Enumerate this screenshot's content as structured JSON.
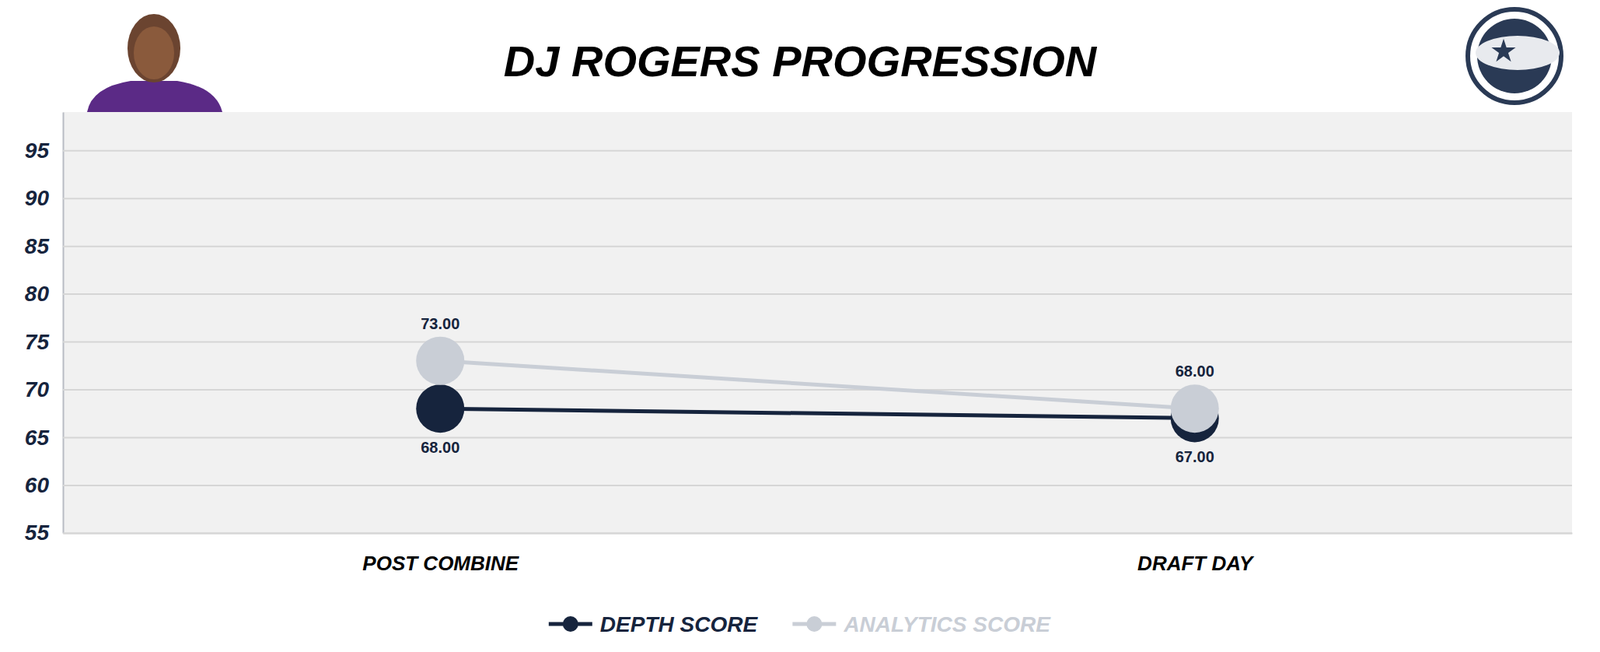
{
  "chart_data": {
    "type": "line",
    "title": "DJ ROGERS PROGRESSION",
    "categories": [
      "POST COMBINE",
      "DRAFT DAY"
    ],
    "series": [
      {
        "name": "DEPTH SCORE",
        "color": "#16243d",
        "marker": "circle",
        "values": [
          68,
          67
        ],
        "value_labels": [
          "68.00",
          "67.00"
        ]
      },
      {
        "name": "ANALYTICS SCORE",
        "color": "#c9ced6",
        "marker": "circle",
        "values": [
          73,
          68
        ],
        "value_labels": [
          "73.00",
          "68.00"
        ]
      }
    ],
    "ylim": [
      55,
      99
    ],
    "yticks": [
      55,
      60,
      65,
      70,
      75,
      80,
      85,
      90,
      95
    ],
    "grid": true,
    "legend": "bottom",
    "data_labels": true
  }
}
